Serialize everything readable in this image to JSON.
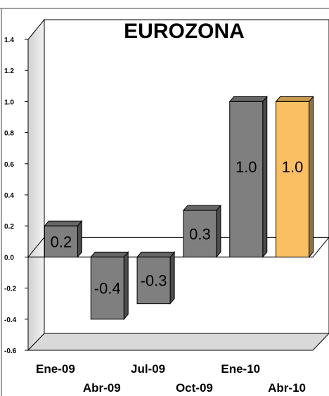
{
  "chart_data": {
    "type": "bar",
    "title": "EUROZONA",
    "categories": [
      "Ene-09",
      "Abr-09",
      "Jul-09",
      "Oct-09",
      "Ene-10",
      "Abr-10"
    ],
    "values": [
      0.2,
      -0.4,
      -0.3,
      0.3,
      1.0,
      1.0
    ],
    "data_labels": [
      "0.2",
      "-0.4",
      "-0.3",
      "0.3",
      "1.0",
      "1.0"
    ],
    "xlabel": "",
    "ylabel": "",
    "ylim": [
      -0.6,
      1.4
    ],
    "yticks": [
      "1.4",
      "1.2",
      "1.0",
      "0.8",
      "0.6",
      "0.4",
      "0.2",
      "0.0",
      "-0.2",
      "-0.4",
      "-0.6"
    ],
    "bar_colors": [
      "#7f7f7f",
      "#7f7f7f",
      "#7f7f7f",
      "#7f7f7f",
      "#7f7f7f",
      "#fbbf63"
    ],
    "style": "3d",
    "grid": false,
    "legend": "none"
  }
}
